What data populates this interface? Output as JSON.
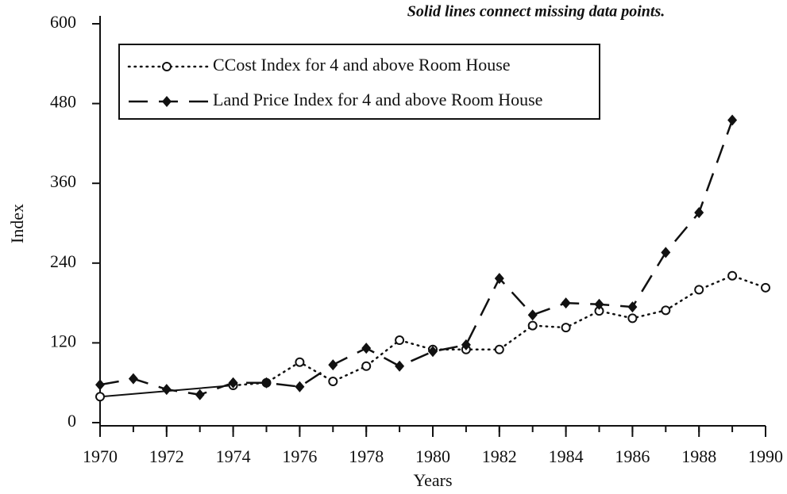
{
  "chart_data": {
    "type": "line",
    "annotation": "Solid lines connect missing data points.",
    "x_label": "Years",
    "y_label": "Index",
    "x": [
      1970,
      1971,
      1972,
      1973,
      1974,
      1975,
      1976,
      1977,
      1978,
      1979,
      1980,
      1981,
      1982,
      1983,
      1984,
      1985,
      1986,
      1987,
      1988,
      1989,
      1990
    ],
    "series": [
      {
        "name": "CCost Index for 4 and above Room House",
        "color": "#111111",
        "marker": "circle",
        "line_style": "dotted",
        "values": [
          39,
          null,
          null,
          null,
          56,
          60,
          91,
          62,
          85,
          124,
          110,
          110,
          110,
          146,
          143,
          168,
          157,
          169,
          200,
          221,
          203
        ]
      },
      {
        "name": "Land Price Index for 4 and above Room House",
        "color": "#111111",
        "marker": "diamond",
        "line_style": "dashed",
        "values": [
          57,
          66,
          50,
          42,
          60,
          60,
          54,
          87,
          112,
          85,
          107,
          117,
          217,
          162,
          180,
          178,
          174,
          256,
          316,
          455,
          null
        ]
      }
    ],
    "xlim": [
      1970,
      1990
    ],
    "xticks": [
      1970,
      1972,
      1974,
      1976,
      1978,
      1980,
      1982,
      1984,
      1986,
      1988,
      1990
    ],
    "ylim": [
      0,
      600
    ],
    "yticks": [
      0,
      120,
      240,
      360,
      480,
      600
    ],
    "legend": "upper left",
    "grid": false
  }
}
